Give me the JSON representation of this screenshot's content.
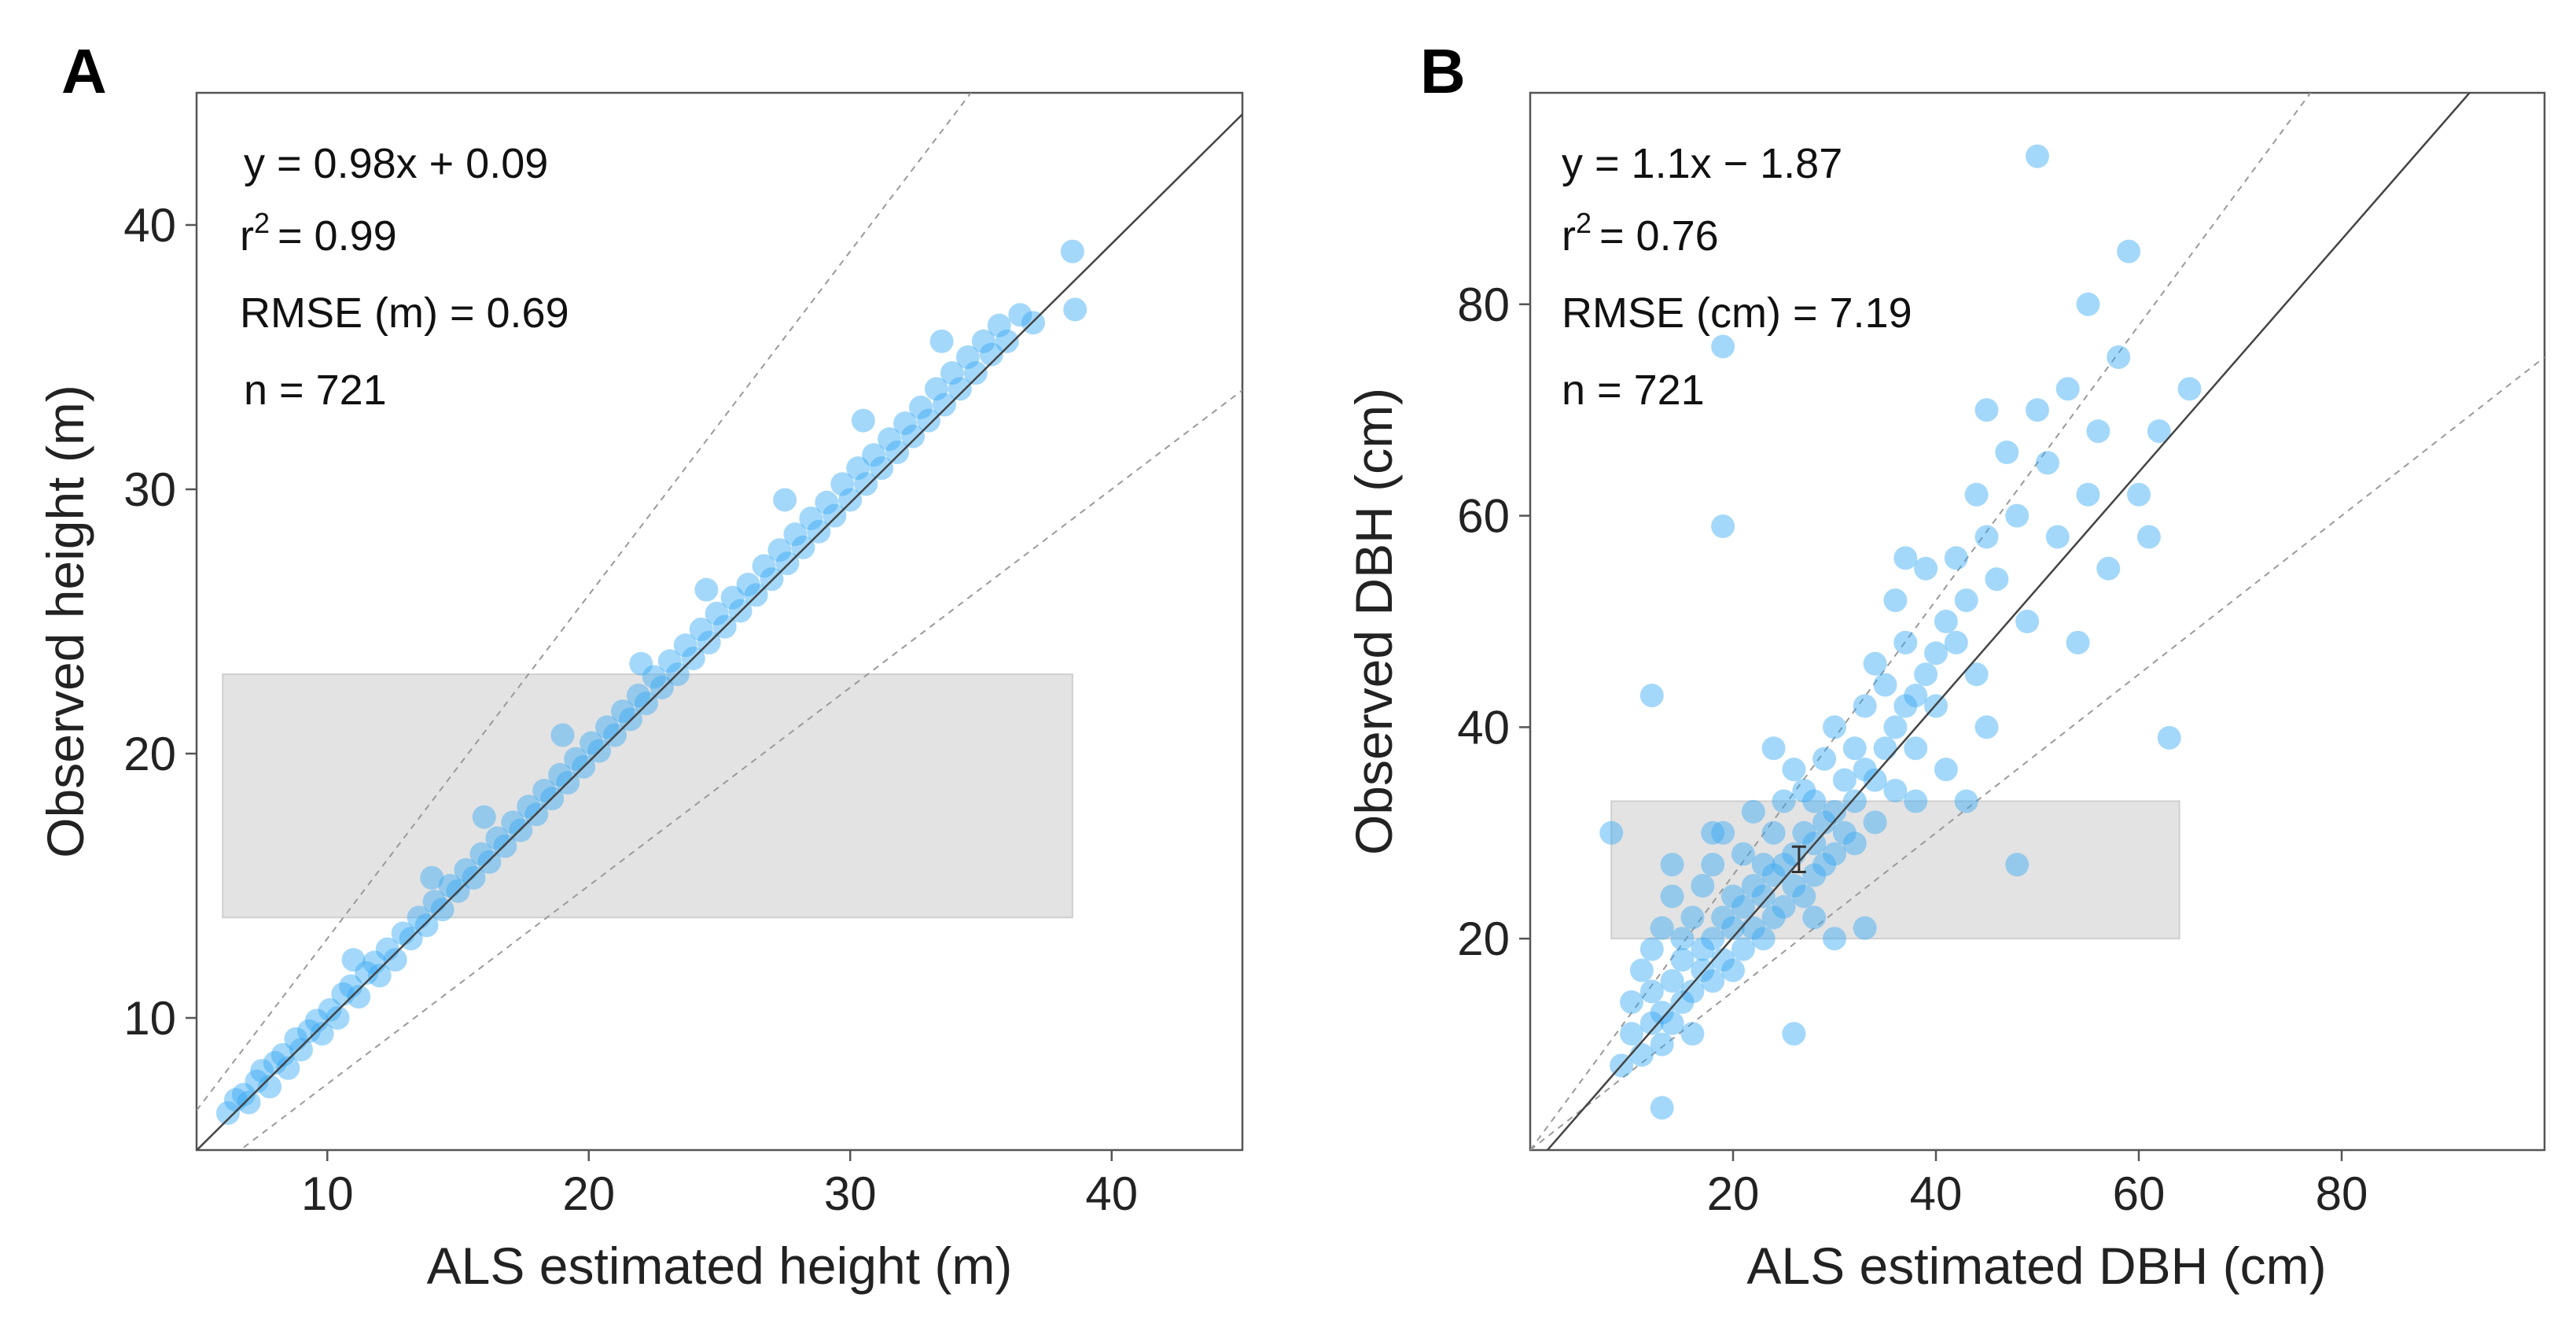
{
  "colors": {
    "point": "#36a8f5",
    "band": "#e3e3e3",
    "one_to_one_line": "#444444",
    "reference_line": "#9a9a9a",
    "frame": "#555555"
  },
  "chart_data": [
    {
      "type": "scatter",
      "panel_label": "A",
      "xlabel": "ALS estimated height (m)",
      "ylabel": "Observed height (m)",
      "xlim": [
        5,
        45
      ],
      "ylim": [
        5,
        45
      ],
      "x_ticks": [
        "10",
        "20",
        "30",
        "40"
      ],
      "y_ticks": [
        "10",
        "20",
        "30",
        "40"
      ],
      "annotations": {
        "equation": "y = 0.98x + 0.09",
        "r2_base": "r",
        "r2_sup": "2",
        "r2_value": "= 0.99",
        "rmse": "RMSE (m) = 0.69",
        "n": "n = 721"
      },
      "fit_line": {
        "slope": 0.98,
        "intercept": 0.09
      },
      "reference_lines": [
        {
          "slope": 1.3,
          "intercept": 0
        },
        {
          "slope": 0.75,
          "intercept": 0
        }
      ],
      "band": {
        "x": [
          6,
          38.5
        ],
        "y": [
          13.8,
          23
        ]
      },
      "sample_series": [
        [
          6.2,
          6.4
        ],
        [
          6.5,
          6.9
        ],
        [
          6.8,
          7.1
        ],
        [
          7.0,
          6.8
        ],
        [
          7.3,
          7.6
        ],
        [
          7.5,
          8.0
        ],
        [
          7.8,
          7.4
        ],
        [
          8.0,
          8.3
        ],
        [
          8.3,
          8.6
        ],
        [
          8.5,
          8.1
        ],
        [
          8.8,
          9.2
        ],
        [
          9.0,
          8.8
        ],
        [
          9.3,
          9.5
        ],
        [
          9.6,
          9.9
        ],
        [
          9.8,
          9.4
        ],
        [
          10.1,
          10.3
        ],
        [
          10.4,
          10.0
        ],
        [
          10.6,
          10.9
        ],
        [
          10.9,
          11.2
        ],
        [
          11.2,
          10.8
        ],
        [
          11.5,
          11.7
        ],
        [
          11.8,
          12.1
        ],
        [
          12.0,
          11.6
        ],
        [
          12.3,
          12.6
        ],
        [
          12.6,
          12.2
        ],
        [
          12.9,
          13.2
        ],
        [
          13.2,
          13.0
        ],
        [
          13.5,
          13.8
        ],
        [
          13.8,
          13.5
        ],
        [
          14.1,
          14.4
        ],
        [
          14.4,
          14.1
        ],
        [
          14.7,
          15.0
        ],
        [
          15.0,
          14.8
        ],
        [
          15.3,
          15.6
        ],
        [
          15.6,
          15.3
        ],
        [
          15.9,
          16.2
        ],
        [
          16.2,
          15.9
        ],
        [
          16.5,
          16.8
        ],
        [
          16.8,
          16.5
        ],
        [
          17.1,
          17.4
        ],
        [
          17.4,
          17.1
        ],
        [
          17.7,
          18.0
        ],
        [
          18.0,
          17.7
        ],
        [
          18.3,
          18.6
        ],
        [
          18.6,
          18.3
        ],
        [
          18.9,
          19.2
        ],
        [
          19.2,
          18.9
        ],
        [
          19.5,
          19.8
        ],
        [
          19.8,
          19.5
        ],
        [
          20.1,
          20.4
        ],
        [
          20.4,
          20.1
        ],
        [
          20.7,
          21.0
        ],
        [
          21.0,
          20.7
        ],
        [
          21.3,
          21.6
        ],
        [
          21.6,
          21.3
        ],
        [
          21.9,
          22.2
        ],
        [
          22.2,
          21.9
        ],
        [
          22.5,
          22.9
        ],
        [
          22.8,
          22.5
        ],
        [
          23.1,
          23.5
        ],
        [
          23.4,
          23.0
        ],
        [
          23.7,
          24.1
        ],
        [
          24.0,
          23.6
        ],
        [
          24.3,
          24.7
        ],
        [
          24.6,
          24.2
        ],
        [
          24.9,
          25.3
        ],
        [
          25.2,
          24.8
        ],
        [
          25.5,
          25.9
        ],
        [
          25.8,
          25.4
        ],
        [
          26.1,
          26.4
        ],
        [
          26.4,
          26.0
        ],
        [
          26.7,
          27.1
        ],
        [
          27.0,
          26.6
        ],
        [
          27.3,
          27.7
        ],
        [
          27.6,
          27.2
        ],
        [
          27.9,
          28.3
        ],
        [
          28.2,
          27.8
        ],
        [
          28.5,
          28.9
        ],
        [
          28.8,
          28.4
        ],
        [
          29.1,
          29.5
        ],
        [
          29.4,
          29.0
        ],
        [
          29.7,
          30.2
        ],
        [
          30.0,
          29.6
        ],
        [
          30.3,
          30.8
        ],
        [
          30.6,
          30.2
        ],
        [
          30.9,
          31.3
        ],
        [
          31.2,
          30.8
        ],
        [
          31.5,
          31.9
        ],
        [
          31.8,
          31.4
        ],
        [
          32.1,
          32.5
        ],
        [
          32.4,
          32.0
        ],
        [
          32.7,
          33.1
        ],
        [
          33.0,
          32.6
        ],
        [
          33.3,
          33.8
        ],
        [
          33.6,
          33.2
        ],
        [
          33.9,
          34.4
        ],
        [
          34.2,
          33.8
        ],
        [
          34.5,
          35.0
        ],
        [
          34.8,
          34.4
        ],
        [
          35.1,
          35.6
        ],
        [
          35.4,
          35.1
        ],
        [
          35.7,
          36.2
        ],
        [
          36.0,
          35.6
        ],
        [
          36.5,
          36.6
        ],
        [
          37.0,
          36.3
        ],
        [
          38.5,
          39.0
        ],
        [
          38.6,
          36.8
        ],
        [
          22.0,
          23.4
        ],
        [
          24.5,
          26.2
        ],
        [
          27.5,
          29.6
        ],
        [
          30.5,
          32.6
        ],
        [
          33.5,
          35.6
        ],
        [
          16.0,
          17.6
        ],
        [
          19.0,
          20.7
        ],
        [
          11.0,
          12.2
        ],
        [
          14.0,
          15.3
        ]
      ]
    },
    {
      "type": "scatter",
      "panel_label": "B",
      "xlabel": "ALS estimated DBH (cm)",
      "ylabel": "Observed DBH (cm)",
      "xlim": [
        0,
        100
      ],
      "ylim": [
        0,
        100
      ],
      "x_ticks": [
        "20",
        "40",
        "60",
        "80"
      ],
      "y_ticks": [
        "20",
        "40",
        "60",
        "80"
      ],
      "annotations": {
        "equation": "y = 1.1x  − 1.87",
        "r2_base": "r",
        "r2_sup": "2",
        "r2_value": "= 0.76",
        "rmse": "RMSE (cm) = 7.19",
        "n": "n = 721"
      },
      "fit_line": {
        "slope": 1.1,
        "intercept": -1.87
      },
      "reference_lines": [
        {
          "slope": 1.3,
          "intercept": 0
        },
        {
          "slope": 0.75,
          "intercept": 0
        }
      ],
      "band": {
        "x": [
          8,
          64
        ],
        "y": [
          20,
          33
        ]
      },
      "error_bar": {
        "x": 26.5,
        "y": 27.5,
        "low": 26.3,
        "high": 28.7
      },
      "sample_series": [
        [
          9,
          8
        ],
        [
          10,
          11
        ],
        [
          10,
          14
        ],
        [
          11,
          9
        ],
        [
          11,
          17
        ],
        [
          12,
          12
        ],
        [
          12,
          15
        ],
        [
          12,
          19
        ],
        [
          13,
          10
        ],
        [
          13,
          13
        ],
        [
          13,
          21
        ],
        [
          14,
          16
        ],
        [
          14,
          12
        ],
        [
          14,
          24
        ],
        [
          15,
          14
        ],
        [
          15,
          18
        ],
        [
          15,
          20
        ],
        [
          16,
          15
        ],
        [
          16,
          22
        ],
        [
          16,
          11
        ],
        [
          17,
          17
        ],
        [
          17,
          25
        ],
        [
          17,
          19
        ],
        [
          18,
          20
        ],
        [
          18,
          16
        ],
        [
          18,
          27
        ],
        [
          19,
          22
        ],
        [
          19,
          18
        ],
        [
          19,
          30
        ],
        [
          20,
          21
        ],
        [
          20,
          24
        ],
        [
          20,
          17
        ],
        [
          21,
          23
        ],
        [
          21,
          28
        ],
        [
          21,
          19
        ],
        [
          22,
          25
        ],
        [
          22,
          21
        ],
        [
          22,
          32
        ],
        [
          23,
          24
        ],
        [
          23,
          27
        ],
        [
          23,
          20
        ],
        [
          24,
          26
        ],
        [
          24,
          30
        ],
        [
          24,
          22
        ],
        [
          25,
          27
        ],
        [
          25,
          33
        ],
        [
          25,
          23
        ],
        [
          26,
          28
        ],
        [
          26,
          25
        ],
        [
          26,
          36
        ],
        [
          27,
          30
        ],
        [
          27,
          24
        ],
        [
          27,
          34
        ],
        [
          28,
          29
        ],
        [
          28,
          33
        ],
        [
          28,
          26
        ],
        [
          29,
          31
        ],
        [
          29,
          37
        ],
        [
          29,
          27
        ],
        [
          30,
          32
        ],
        [
          30,
          28
        ],
        [
          30,
          40
        ],
        [
          31,
          35
        ],
        [
          31,
          30
        ],
        [
          32,
          33
        ],
        [
          32,
          38
        ],
        [
          32,
          29
        ],
        [
          33,
          36
        ],
        [
          33,
          42
        ],
        [
          34,
          35
        ],
        [
          34,
          31
        ],
        [
          34,
          46
        ],
        [
          35,
          38
        ],
        [
          35,
          44
        ],
        [
          36,
          40
        ],
        [
          36,
          34
        ],
        [
          36,
          52
        ],
        [
          37,
          42
        ],
        [
          37,
          48
        ],
        [
          38,
          43
        ],
        [
          38,
          38
        ],
        [
          39,
          45
        ],
        [
          39,
          55
        ],
        [
          40,
          47
        ],
        [
          40,
          42
        ],
        [
          41,
          50
        ],
        [
          41,
          36
        ],
        [
          42,
          48
        ],
        [
          42,
          56
        ],
        [
          43,
          52
        ],
        [
          44,
          45
        ],
        [
          44,
          62
        ],
        [
          45,
          58
        ],
        [
          45,
          40
        ],
        [
          46,
          54
        ],
        [
          47,
          66
        ],
        [
          48,
          60
        ],
        [
          48,
          27
        ],
        [
          49,
          50
        ],
        [
          50,
          70
        ],
        [
          51,
          65
        ],
        [
          52,
          58
        ],
        [
          53,
          72
        ],
        [
          54,
          48
        ],
        [
          55,
          80
        ],
        [
          55,
          62
        ],
        [
          56,
          68
        ],
        [
          57,
          55
        ],
        [
          58,
          75
        ],
        [
          59,
          85
        ],
        [
          60,
          62
        ],
        [
          61,
          58
        ],
        [
          62,
          68
        ],
        [
          63,
          39
        ],
        [
          65,
          72
        ],
        [
          50,
          94
        ],
        [
          19,
          76
        ],
        [
          19,
          59
        ],
        [
          12,
          43
        ],
        [
          18,
          30
        ],
        [
          13,
          4
        ],
        [
          26,
          11
        ],
        [
          33,
          21
        ],
        [
          38,
          33
        ],
        [
          43,
          33
        ],
        [
          30,
          20
        ],
        [
          37,
          56
        ],
        [
          45,
          70
        ],
        [
          8,
          30
        ],
        [
          14,
          27
        ],
        [
          24,
          38
        ],
        [
          28,
          22
        ]
      ]
    }
  ]
}
